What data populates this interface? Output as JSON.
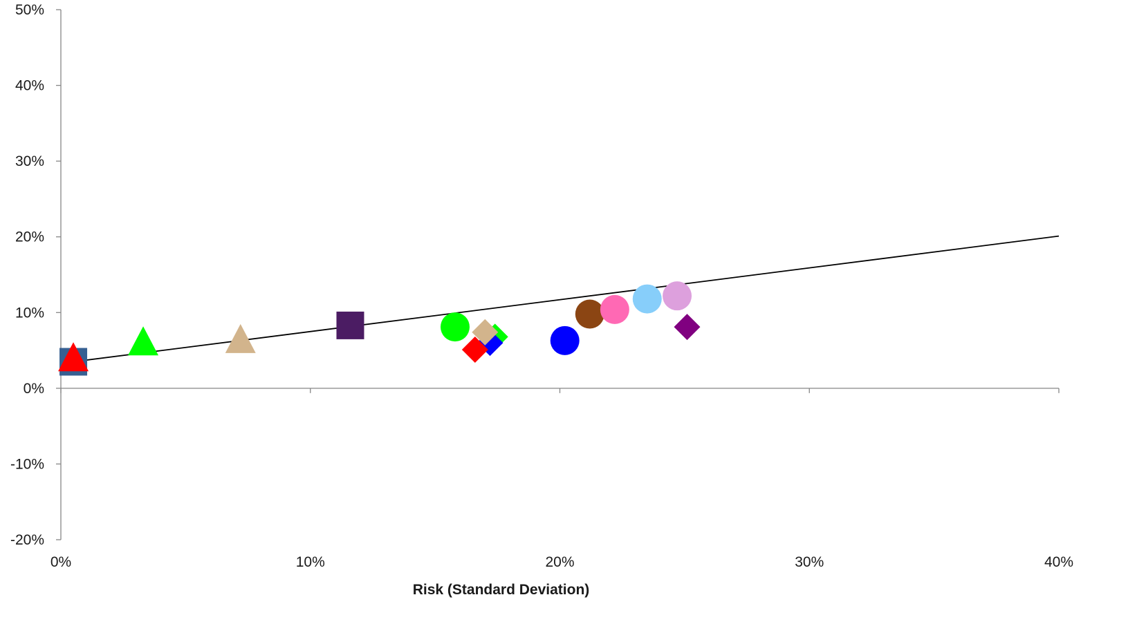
{
  "chart_data": {
    "type": "scatter",
    "xlabel": "Risk (Standard Deviation)",
    "ylabel": "",
    "xlim": [
      0,
      40
    ],
    "ylim": [
      -20,
      50
    ],
    "x_ticks": [
      0,
      10,
      20,
      30,
      40
    ],
    "y_ticks": [
      -20,
      -10,
      0,
      10,
      20,
      30,
      40,
      50
    ],
    "x_tick_labels": [
      "0%",
      "10%",
      "20%",
      "30%",
      "40%"
    ],
    "y_tick_labels": [
      "-20%",
      "-10%",
      "0%",
      "10%",
      "20%",
      "30%",
      "40%",
      "50%"
    ],
    "grid": false,
    "legend": "none",
    "points": [
      {
        "x": 0.5,
        "y": 3.5,
        "marker": "square",
        "color": "#376092"
      },
      {
        "x": 0.5,
        "y": 3.8,
        "marker": "triangle",
        "color": "#ff0000"
      },
      {
        "x": 3.3,
        "y": 5.9,
        "marker": "triangle",
        "color": "#00ff00"
      },
      {
        "x": 7.2,
        "y": 6.2,
        "marker": "triangle",
        "color": "#d2b48c"
      },
      {
        "x": 11.6,
        "y": 8.3,
        "marker": "square",
        "color": "#4b1c63"
      },
      {
        "x": 15.8,
        "y": 8.1,
        "marker": "circle",
        "color": "#00ff00"
      },
      {
        "x": 17.4,
        "y": 6.8,
        "marker": "diamond",
        "color": "#00ff00"
      },
      {
        "x": 17.2,
        "y": 6.0,
        "marker": "diamond",
        "color": "#0000ff"
      },
      {
        "x": 16.6,
        "y": 5.1,
        "marker": "diamond",
        "color": "#ff0000"
      },
      {
        "x": 17.0,
        "y": 7.4,
        "marker": "diamond",
        "color": "#d2b48c"
      },
      {
        "x": 20.2,
        "y": 6.3,
        "marker": "circle",
        "color": "#0000ff"
      },
      {
        "x": 21.2,
        "y": 9.8,
        "marker": "circle",
        "color": "#8b4513"
      },
      {
        "x": 22.2,
        "y": 10.4,
        "marker": "circle",
        "color": "#ff69b4"
      },
      {
        "x": 23.5,
        "y": 11.8,
        "marker": "circle",
        "color": "#87cefa"
      },
      {
        "x": 24.7,
        "y": 12.2,
        "marker": "circle",
        "color": "#dda0dd"
      },
      {
        "x": 25.1,
        "y": 8.1,
        "marker": "diamond",
        "color": "#800080"
      }
    ],
    "line": {
      "x": [
        0.5,
        40
      ],
      "y": [
        3.5,
        20.1
      ],
      "color": "#000000"
    }
  }
}
